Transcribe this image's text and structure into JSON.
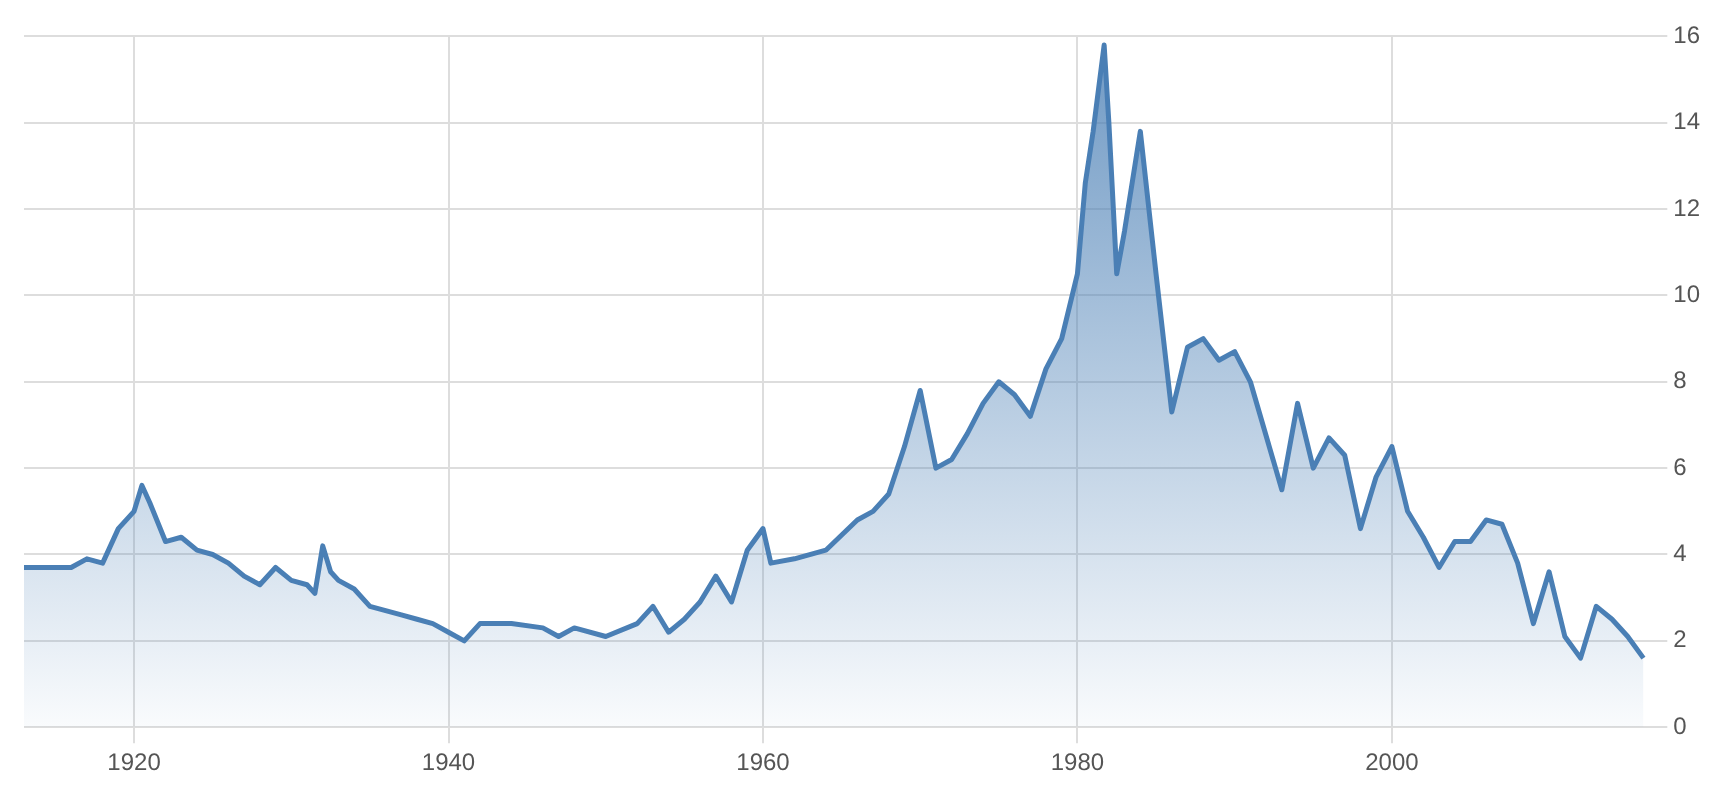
{
  "chart_data": {
    "type": "area",
    "x": [
      1913,
      1916,
      1917,
      1918,
      1919,
      1920,
      1920.5,
      1921,
      1922,
      1923,
      1924,
      1925,
      1926,
      1927,
      1928,
      1929,
      1930,
      1931,
      1931.5,
      1932,
      1932.5,
      1933,
      1934,
      1935,
      1936,
      1937,
      1938,
      1939,
      1940,
      1941,
      1942,
      1944,
      1946,
      1947,
      1948,
      1950,
      1952,
      1953,
      1954,
      1955,
      1956,
      1957,
      1958,
      1959,
      1960,
      1960.5,
      1962,
      1964,
      1966,
      1967,
      1968,
      1969,
      1970,
      1971,
      1972,
      1973,
      1974,
      1975,
      1976,
      1977,
      1978,
      1979,
      1980,
      1980.5,
      1981,
      1981.7,
      1982,
      1982.5,
      1983,
      1984,
      1985,
      1986,
      1987,
      1988,
      1989,
      1990,
      1991,
      1993,
      1994,
      1995,
      1996,
      1997,
      1998,
      1999,
      2000,
      2001,
      2002,
      2003,
      2004,
      2005,
      2006,
      2007,
      2008,
      2009,
      2010,
      2011,
      2012,
      2013,
      2014,
      2015,
      2016
    ],
    "series": [
      {
        "color": "#4a7fb5",
        "values": [
          3.7,
          3.7,
          3.9,
          3.8,
          4.6,
          5.0,
          5.6,
          5.2,
          4.3,
          4.4,
          4.1,
          4.0,
          3.8,
          3.5,
          3.3,
          3.7,
          3.4,
          3.3,
          3.1,
          4.2,
          3.6,
          3.4,
          3.2,
          2.8,
          2.7,
          2.6,
          2.5,
          2.4,
          2.2,
          2.0,
          2.4,
          2.4,
          2.3,
          2.1,
          2.3,
          2.1,
          2.4,
          2.8,
          2.2,
          2.5,
          2.9,
          3.5,
          2.9,
          4.1,
          4.6,
          3.8,
          3.9,
          4.1,
          4.8,
          5.0,
          5.4,
          6.5,
          7.8,
          6.0,
          6.2,
          6.8,
          7.5,
          8.0,
          7.7,
          7.2,
          8.3,
          9.0,
          10.5,
          12.6,
          13.8,
          15.8,
          14.0,
          10.5,
          11.5,
          13.8,
          10.5,
          7.3,
          8.8,
          9.0,
          8.5,
          8.7,
          8.0,
          5.5,
          7.5,
          6.0,
          6.7,
          6.3,
          4.6,
          5.8,
          6.5,
          5.0,
          4.4,
          3.7,
          4.3,
          4.3,
          4.8,
          4.7,
          3.8,
          2.4,
          3.6,
          2.1,
          1.6,
          2.8,
          2.5,
          2.1,
          1.6
        ]
      }
    ],
    "xlim": [
      1913,
      2016.5
    ],
    "xticks": [
      1920,
      1940,
      1960,
      1980,
      2000
    ],
    "ylim": [
      0,
      16
    ],
    "yticks": [
      0,
      2,
      4,
      6,
      8,
      10,
      12,
      14,
      16
    ],
    "grid": true,
    "legend": false,
    "marker": "none",
    "line_style": "solid"
  }
}
